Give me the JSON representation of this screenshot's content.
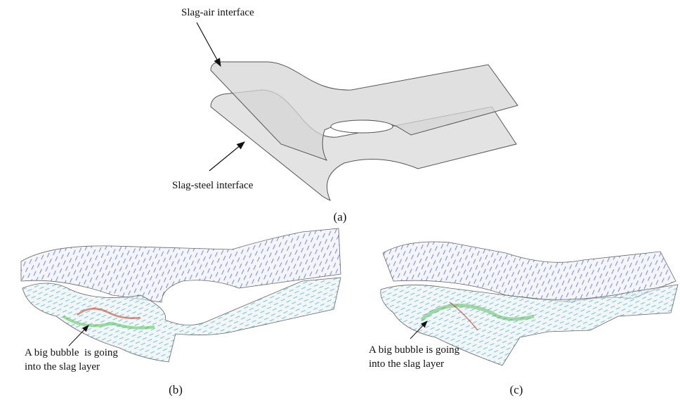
{
  "panels": [
    {
      "label": "(a)",
      "annotations": [
        "Slag-air interface",
        "Slag-steel interface"
      ]
    },
    {
      "label": "(b)",
      "annotation": [
        "A big bubble  is going",
        "into the slag layer"
      ]
    },
    {
      "label": "(c)",
      "annotation": [
        "A big bubble is going",
        "into the slag layer"
      ]
    }
  ]
}
